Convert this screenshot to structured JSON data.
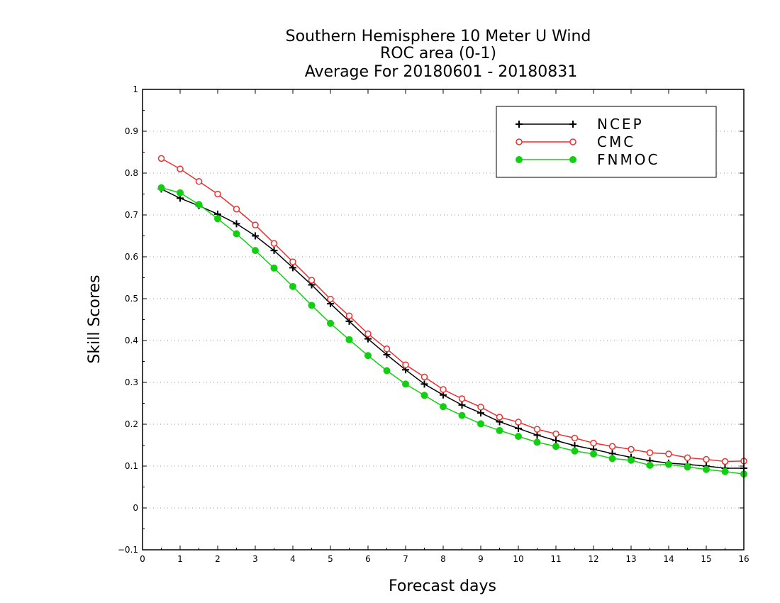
{
  "chart_data": {
    "type": "line",
    "title": [
      "Southern Hemisphere 10 Meter U Wind",
      "ROC area (0-1)",
      "Average For 20180601 - 20180831"
    ],
    "xlabel": "Forecast days",
    "ylabel": "Skill Scores",
    "xlim": [
      0,
      16
    ],
    "ylim": [
      -0.1,
      1
    ],
    "xticks": [
      "0",
      "1",
      "2",
      "3",
      "4",
      "5",
      "6",
      "7",
      "8",
      "9",
      "10",
      "11",
      "12",
      "13",
      "14",
      "15",
      "16"
    ],
    "yticks": [
      "−0.1",
      "0",
      "0.1",
      "0.2",
      "0.3",
      "0.4",
      "0.5",
      "0.6",
      "0.7",
      "0.8",
      "0.9",
      "1"
    ],
    "grid": "horizontal dotted",
    "legend_position": "top-right",
    "x": [
      0.5,
      1,
      1.5,
      2,
      2.5,
      3,
      3.5,
      4,
      4.5,
      5,
      5.5,
      6,
      6.5,
      7,
      7.5,
      8,
      8.5,
      9,
      9.5,
      10,
      10.5,
      11,
      11.5,
      12,
      12.5,
      13,
      13.5,
      14,
      14.5,
      15,
      15.5,
      16
    ],
    "series": [
      {
        "name": "NCEP",
        "color": "#000000",
        "marker": "plus",
        "values": [
          0.762,
          0.74,
          0.722,
          0.702,
          0.679,
          0.65,
          0.615,
          0.574,
          0.533,
          0.488,
          0.446,
          0.404,
          0.366,
          0.33,
          0.296,
          0.27,
          0.246,
          0.227,
          0.206,
          0.19,
          0.174,
          0.161,
          0.149,
          0.14,
          0.13,
          0.121,
          0.113,
          0.107,
          0.104,
          0.1,
          0.095,
          0.095
        ]
      },
      {
        "name": "CMC",
        "color": "#e83030",
        "marker": "open-circle",
        "values": [
          0.835,
          0.81,
          0.78,
          0.75,
          0.714,
          0.676,
          0.632,
          0.588,
          0.544,
          0.499,
          0.459,
          0.416,
          0.38,
          0.342,
          0.313,
          0.283,
          0.261,
          0.241,
          0.217,
          0.205,
          0.188,
          0.177,
          0.167,
          0.155,
          0.147,
          0.14,
          0.132,
          0.129,
          0.12,
          0.116,
          0.111,
          0.112
        ]
      },
      {
        "name": "FNMOC",
        "color": "#10d010",
        "marker": "filled-circle",
        "values": [
          0.765,
          0.753,
          0.725,
          0.691,
          0.655,
          0.615,
          0.573,
          0.529,
          0.484,
          0.441,
          0.402,
          0.364,
          0.328,
          0.296,
          0.269,
          0.242,
          0.221,
          0.201,
          0.185,
          0.171,
          0.157,
          0.147,
          0.136,
          0.129,
          0.118,
          0.114,
          0.102,
          0.104,
          0.098,
          0.092,
          0.087,
          0.081
        ]
      }
    ]
  }
}
